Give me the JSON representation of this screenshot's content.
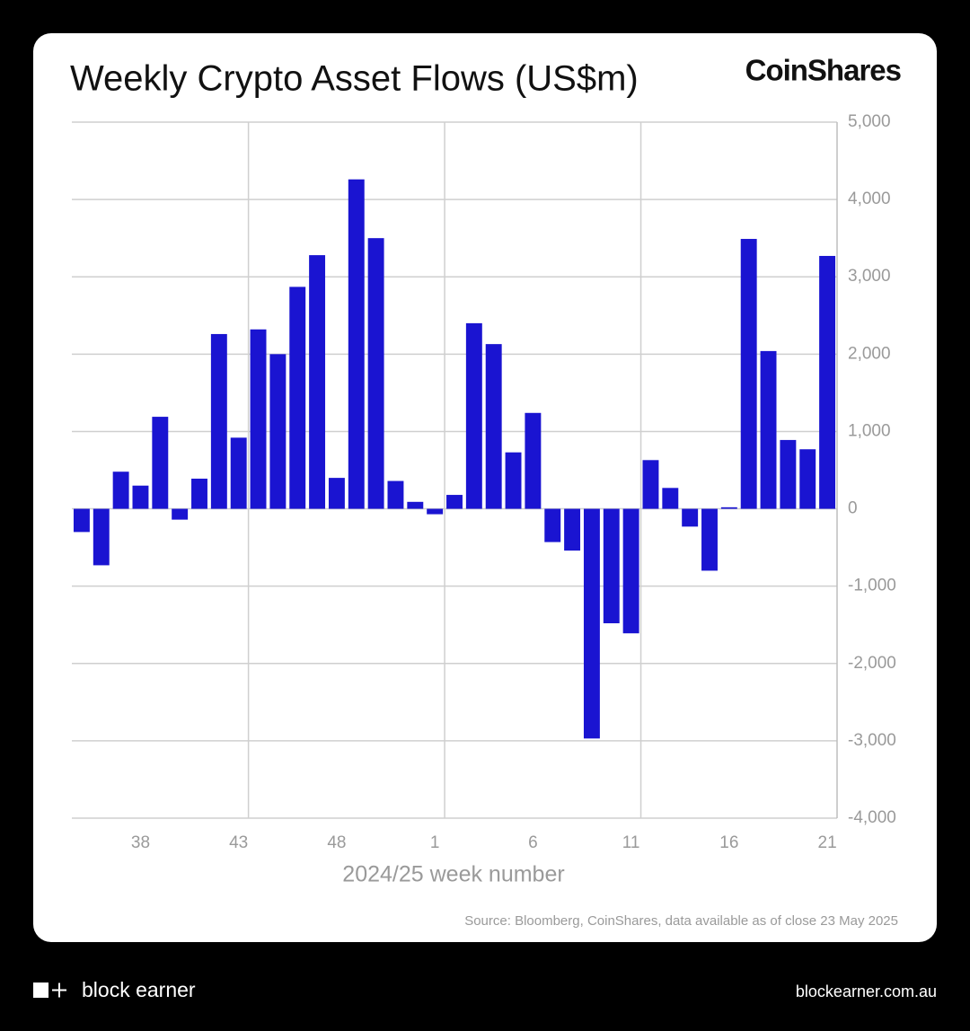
{
  "chart_data": {
    "type": "bar",
    "title": "Weekly Crypto Asset Flows (US$m)",
    "brand": "CoinShares",
    "x_label": "2024/25 week number",
    "source": "Source: Bloomberg, CoinShares, data available as of close 23 May 2025",
    "categories": [
      null,
      null,
      null,
      "38",
      null,
      null,
      null,
      null,
      "43",
      null,
      null,
      null,
      null,
      "48",
      null,
      null,
      null,
      null,
      "1",
      null,
      null,
      null,
      null,
      "6",
      null,
      null,
      null,
      null,
      "11",
      null,
      null,
      null,
      null,
      "16",
      null,
      null,
      null,
      null,
      "21"
    ],
    "values": [
      -300,
      -730,
      480,
      300,
      1190,
      -140,
      390,
      2260,
      920,
      2320,
      2000,
      2870,
      3280,
      400,
      4260,
      3500,
      360,
      90,
      -70,
      180,
      2400,
      2130,
      730,
      1240,
      -430,
      -540,
      -2970,
      -1480,
      -1610,
      630,
      270,
      -230,
      -800,
      20,
      3490,
      2040,
      890,
      770,
      3270
    ],
    "color": "#1a14d1",
    "ylim": [
      -4000,
      5000
    ],
    "yticks": [
      {
        "value": -4000,
        "label": "-4,000"
      },
      {
        "value": -3000,
        "label": "-3,000"
      },
      {
        "value": -2000,
        "label": "-2,000"
      },
      {
        "value": -1000,
        "label": "-1,000"
      },
      0,
      {
        "value": 1000,
        "label": "1,000"
      },
      {
        "value": 2000,
        "label": "2,000"
      },
      {
        "value": 3000,
        "label": "3,000"
      },
      {
        "value": 4000,
        "label": "4,000"
      },
      {
        "value": 5000,
        "label": "5,000"
      }
    ],
    "grid": true
  },
  "footer": {
    "brand": "block earner",
    "url": "blockearner.com.au"
  }
}
